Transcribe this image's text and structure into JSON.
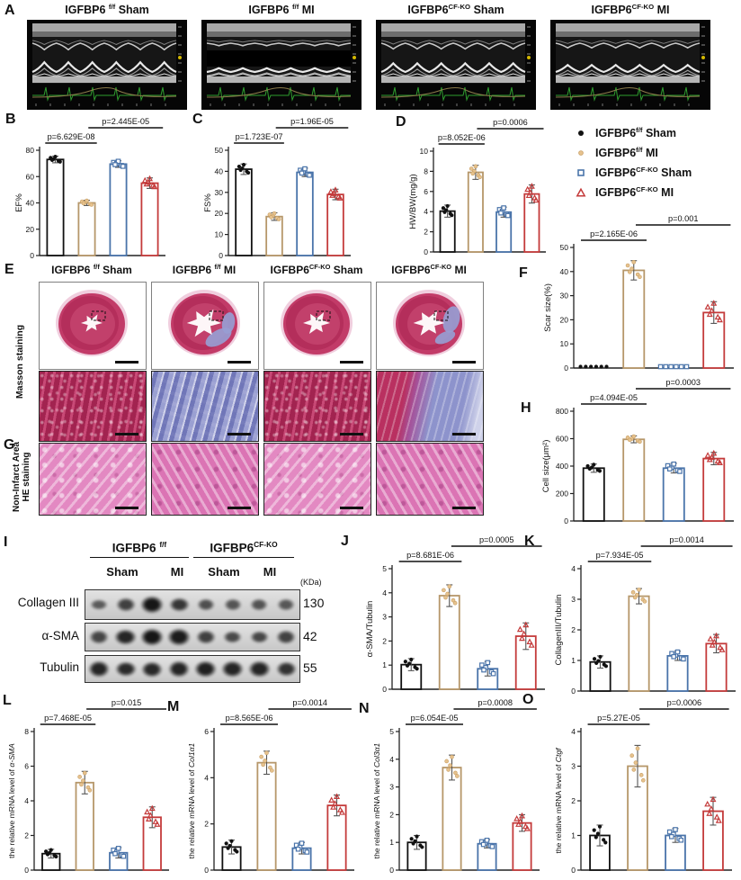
{
  "groups": [
    {
      "base": "IGFBP6",
      "sup": "f/f",
      "rest": " Sham",
      "color": "#111111",
      "point_color": "#111111",
      "marker": "filled-circle"
    },
    {
      "base": "IGFBP6",
      "sup": "f/f",
      "rest": " MI",
      "color": "#b6976a",
      "point_color": "#e6c28e",
      "marker": "filled-circle-small"
    },
    {
      "base": "IGFBP6",
      "sup": "CF-KO",
      "rest": " Sham",
      "color": "#4a74aa",
      "point_color": "#4a74aa",
      "marker": "open-square"
    },
    {
      "base": "IGFBP6",
      "sup": "CF-KO",
      "rest": " MI",
      "color": "#c43b3b",
      "point_color": "#c43b3b",
      "marker": "open-triangle"
    }
  ],
  "echo": {
    "letter": "A",
    "items": [
      {
        "base": "IGFBP6 ",
        "sup": "f/f",
        "rest": " Sham"
      },
      {
        "base": "IGFBP6 ",
        "sup": "f/f",
        "rest": " MI"
      },
      {
        "base": "IGFBP6",
        "sup": "CF-KO",
        "rest": " Sham"
      },
      {
        "base": "IGFBP6",
        "sup": "CF-KO",
        "rest": " MI"
      }
    ]
  },
  "histology": {
    "letter_e": "E",
    "letter_g": "G",
    "column_titles": [
      {
        "base": "IGFBP6 ",
        "sup": "f/f",
        "rest": " Sham"
      },
      {
        "base": "IGFBP6 ",
        "sup": "f/f",
        "rest": " MI"
      },
      {
        "base": "IGFBP6",
        "sup": "CF-KO",
        "rest": " Sham"
      },
      {
        "base": "IGFBP6",
        "sup": "CF-KO",
        "rest": " MI"
      }
    ],
    "masson_label": "Masson staining",
    "he_label_line1": "Non-Infarct Area",
    "he_label_line2": "HE staining"
  },
  "western_blot": {
    "letter": "I",
    "group_headers": [
      {
        "base": "IGFBP6 ",
        "sup": "f/f"
      },
      {
        "base": "IGFBP6",
        "sup": "CF-KO"
      }
    ],
    "lane_labels": [
      "Sham",
      "MI",
      "Sham",
      "MI"
    ],
    "kda_label": "(KDa)",
    "rows": [
      {
        "label": "Collagen III",
        "kda": "130",
        "intensities": [
          0.35,
          0.6,
          1.0,
          0.7,
          0.45,
          0.4,
          0.42,
          0.38
        ]
      },
      {
        "label": "α-SMA",
        "kda": "42",
        "intensities": [
          0.55,
          0.85,
          1.0,
          0.95,
          0.6,
          0.5,
          0.52,
          0.58
        ]
      },
      {
        "label": "Tubulin",
        "kda": "55",
        "intensities": [
          0.85,
          0.8,
          0.82,
          0.85,
          0.9,
          0.85,
          0.85,
          0.72
        ]
      }
    ]
  },
  "chart_data": [
    {
      "panel": "B",
      "type": "bar",
      "ylabel": "EF%",
      "ylim": [
        0,
        80
      ],
      "yticks": [
        0,
        20,
        40,
        60,
        80
      ],
      "values": [
        73,
        40,
        69.5,
        55
      ],
      "errors": [
        2.5,
        2,
        2.5,
        4
      ],
      "p_left": "p=6.629E-08",
      "p_right": "p=2.445E-05"
    },
    {
      "panel": "C",
      "type": "bar",
      "ylabel": "FS%",
      "ylim": [
        0,
        50
      ],
      "yticks": [
        0,
        10,
        20,
        30,
        40,
        50
      ],
      "values": [
        41,
        18.5,
        39.5,
        29
      ],
      "errors": [
        2.5,
        1.8,
        2,
        2.5
      ],
      "p_left": "p=1.723E-07",
      "p_right": "p=1.96E-05"
    },
    {
      "panel": "D",
      "type": "bar",
      "ylabel": "HW/BW(mg/g)",
      "ylim": [
        0,
        10
      ],
      "yticks": [
        0,
        2,
        4,
        6,
        8,
        10
      ],
      "values": [
        4.05,
        7.9,
        3.95,
        5.75
      ],
      "errors": [
        0.6,
        0.7,
        0.5,
        0.9
      ],
      "p_left": "p=8.052E-06",
      "p_right": "p=0.0006"
    },
    {
      "panel": "F",
      "type": "bar",
      "ylabel": "Scar size(%)",
      "ylim": [
        0,
        50
      ],
      "yticks": [
        0,
        10,
        20,
        30,
        40,
        50
      ],
      "values": [
        0,
        40.5,
        0,
        23
      ],
      "errors": [
        0,
        4,
        0,
        4.5
      ],
      "p_left": "p=2.165E-06",
      "p_right": "p=0.001"
    },
    {
      "panel": "H",
      "type": "bar",
      "ylabel": "Cell size(μm²)",
      "ylim": [
        0,
        800
      ],
      "yticks": [
        0,
        200,
        400,
        600,
        800
      ],
      "values": [
        385,
        595,
        385,
        455
      ],
      "errors": [
        30,
        25,
        35,
        45
      ],
      "p_left": "p=4.094E-05",
      "p_right": "p=0.0003"
    },
    {
      "panel": "J",
      "type": "bar",
      "ylabel": "α-SMA/Tubulin",
      "ylim": [
        0,
        5
      ],
      "yticks": [
        0,
        1,
        2,
        3,
        4,
        5
      ],
      "values": [
        1.02,
        3.88,
        0.85,
        2.2
      ],
      "errors": [
        0.25,
        0.45,
        0.3,
        0.55
      ],
      "p_left": "p=8.681E-06",
      "p_right": "p=0.0005"
    },
    {
      "panel": "K",
      "type": "bar",
      "ylabel": "CollagenIII/Tubulin",
      "ylim": [
        0,
        4
      ],
      "yticks": [
        0,
        1,
        2,
        3,
        4
      ],
      "values": [
        0.95,
        3.1,
        1.15,
        1.55
      ],
      "errors": [
        0.2,
        0.25,
        0.15,
        0.3
      ],
      "p_left": "p=7.934E-05",
      "p_right": "p=0.0014"
    },
    {
      "panel": "L",
      "type": "bar",
      "ylabel": "the relative mRNA level of ",
      "ylabel_em": "α-SMA",
      "ylim": [
        0,
        8
      ],
      "yticks": [
        0,
        2,
        4,
        6,
        8
      ],
      "values": [
        0.95,
        5.05,
        1.0,
        3.05
      ],
      "errors": [
        0.25,
        0.65,
        0.3,
        0.6
      ],
      "p_left": "p=7.468E-05",
      "p_right": "p=0.015"
    },
    {
      "panel": "M",
      "type": "bar",
      "ylabel": "the relative mRNA level of ",
      "ylabel_em": "Col1α1",
      "ylim": [
        0,
        6
      ],
      "yticks": [
        0,
        2,
        4,
        6
      ],
      "values": [
        1.0,
        4.65,
        0.95,
        2.8
      ],
      "errors": [
        0.3,
        0.5,
        0.25,
        0.45
      ],
      "p_left": "p=8.565E-06",
      "p_right": "p=0.0014"
    },
    {
      "panel": "N",
      "type": "bar",
      "ylabel": "the relative mRNA level of ",
      "ylabel_em": "Col3α1",
      "ylim": [
        0,
        5
      ],
      "yticks": [
        0,
        1,
        2,
        3,
        4,
        5
      ],
      "values": [
        1.0,
        3.7,
        0.95,
        1.7
      ],
      "errors": [
        0.25,
        0.45,
        0.15,
        0.3
      ],
      "p_left": "p=6.054E-05",
      "p_right": "p=0.0008"
    },
    {
      "panel": "O",
      "type": "bar",
      "ylabel": "the relative mRNA level of ",
      "ylabel_em": "Ctgf",
      "ylim": [
        0,
        4
      ],
      "yticks": [
        0,
        1,
        2,
        3,
        4
      ],
      "values": [
        1.0,
        3.0,
        1.0,
        1.7
      ],
      "errors": [
        0.3,
        0.6,
        0.2,
        0.4
      ],
      "p_left": "p=5.27E-05",
      "p_right": "p=0.0006"
    }
  ]
}
